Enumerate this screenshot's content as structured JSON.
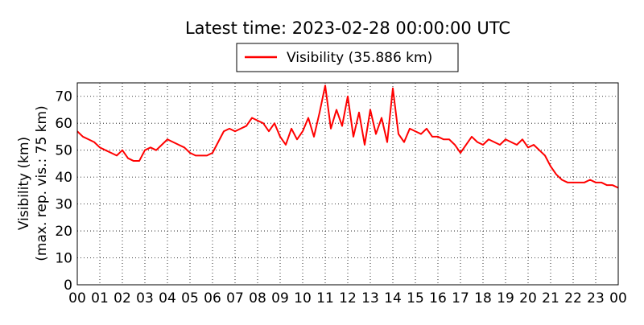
{
  "chart_data": {
    "type": "line",
    "title": "Latest time: 2023-02-28 00:00:00 UTC",
    "ylabel": [
      "Visibility (km)",
      "(max. rep. vis.: 75 km)"
    ],
    "xlim": [
      0,
      24
    ],
    "ylim": [
      0,
      75
    ],
    "xticks": [
      {
        "value": 0,
        "label": "00"
      },
      {
        "value": 1,
        "label": "01"
      },
      {
        "value": 2,
        "label": "02"
      },
      {
        "value": 3,
        "label": "03"
      },
      {
        "value": 4,
        "label": "04"
      },
      {
        "value": 5,
        "label": "05"
      },
      {
        "value": 6,
        "label": "06"
      },
      {
        "value": 7,
        "label": "07"
      },
      {
        "value": 8,
        "label": "08"
      },
      {
        "value": 9,
        "label": "09"
      },
      10,
      11,
      12,
      13,
      14,
      15,
      16,
      17,
      18,
      19,
      20,
      21,
      22,
      23,
      {
        "value": 24,
        "label": "00"
      }
    ],
    "yticks": [
      0,
      10,
      20,
      30,
      40,
      50,
      60,
      70
    ],
    "grid": true,
    "x": [
      0,
      0.25,
      0.5,
      0.75,
      1,
      1.25,
      1.5,
      1.75,
      2,
      2.25,
      2.5,
      2.75,
      3,
      3.25,
      3.5,
      3.75,
      4,
      4.25,
      4.5,
      4.75,
      5,
      5.25,
      5.5,
      5.75,
      6,
      6.25,
      6.5,
      6.75,
      7,
      7.25,
      7.5,
      7.75,
      8,
      8.25,
      8.5,
      8.75,
      9,
      9.25,
      9.5,
      9.75,
      10,
      10.25,
      10.5,
      10.75,
      11,
      11.25,
      11.5,
      11.75,
      12,
      12.25,
      12.5,
      12.75,
      13,
      13.25,
      13.5,
      13.75,
      14,
      14.25,
      14.5,
      14.75,
      15,
      15.25,
      15.5,
      15.75,
      16,
      16.25,
      16.5,
      16.75,
      17,
      17.25,
      17.5,
      17.75,
      18,
      18.25,
      18.5,
      18.75,
      19,
      19.25,
      19.5,
      19.75,
      20,
      20.25,
      20.5,
      20.75,
      21,
      21.25,
      21.5,
      21.75,
      22,
      22.25,
      22.5,
      22.75,
      23,
      23.25,
      23.5,
      23.75,
      24
    ],
    "series": [
      {
        "name": "Visibility (35.886 km)",
        "color": "#ff0000",
        "values": [
          57,
          55,
          54,
          53,
          51,
          50,
          49,
          48,
          50,
          47,
          46,
          46,
          50,
          51,
          50,
          52,
          54,
          53,
          52,
          51,
          49,
          48,
          48,
          48,
          49,
          53,
          57,
          58,
          57,
          58,
          59,
          62,
          61,
          60,
          57,
          60,
          55,
          52,
          58,
          54,
          57,
          62,
          55,
          64,
          74,
          58,
          65,
          59,
          70,
          55,
          64,
          52,
          65,
          56,
          62,
          53,
          73,
          56,
          53,
          58,
          57,
          56,
          58,
          55,
          55,
          54,
          54,
          52,
          49,
          52,
          55,
          53,
          52,
          54,
          53,
          52,
          54,
          53,
          52,
          54,
          51,
          52,
          50,
          48,
          44,
          41,
          39,
          38,
          38,
          38,
          38,
          39,
          38,
          38,
          37,
          37,
          36
        ]
      }
    ]
  }
}
